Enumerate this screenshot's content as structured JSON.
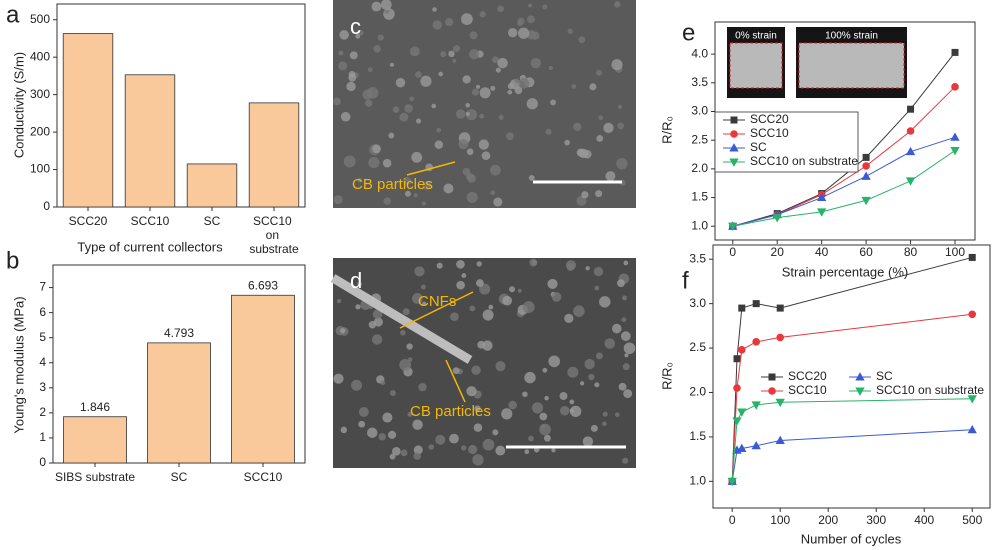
{
  "chart_data": [
    {
      "panel": "a",
      "type": "bar",
      "categories": [
        "SCC20",
        "SCC10",
        "SC",
        "SCC10 on substrate"
      ],
      "values": [
        463,
        353,
        115,
        278
      ],
      "color": "#f9c89b",
      "ylim": [
        0,
        542
      ],
      "yticks": [
        0,
        100,
        200,
        300,
        400,
        500
      ],
      "ylabel": "Conductivity (S/m)",
      "xlabel": "Type of current collectors"
    },
    {
      "panel": "b",
      "type": "bar",
      "categories": [
        "SIBS substrate",
        "SC",
        "SCC10"
      ],
      "values": [
        1.846,
        4.793,
        6.693
      ],
      "color": "#f9c89b",
      "data_labels": true,
      "ylim": [
        0,
        7.9
      ],
      "yticks": [
        0,
        1,
        2,
        3,
        4,
        5,
        6,
        7
      ],
      "ylabel": "Young's modulus (MPa)"
    },
    {
      "panel": "e",
      "type": "line",
      "x": [
        0,
        20,
        40,
        60,
        80,
        100
      ],
      "series": [
        {
          "name": "SCC20",
          "color": "#3a3a3a",
          "marker": "square",
          "values": [
            1.0,
            1.22,
            1.57,
            2.2,
            3.04,
            4.03
          ]
        },
        {
          "name": "SCC10",
          "color": "#e8383d",
          "marker": "circle",
          "values": [
            1.0,
            1.2,
            1.55,
            2.05,
            2.66,
            3.43
          ]
        },
        {
          "name": "SC",
          "color": "#3a5bd6",
          "marker": "triangle-up",
          "values": [
            1.0,
            1.2,
            1.5,
            1.87,
            2.3,
            2.55
          ]
        },
        {
          "name": "SCC10 on substrate",
          "color": "#27b36a",
          "marker": "triangle-down",
          "values": [
            1.0,
            1.15,
            1.25,
            1.45,
            1.79,
            2.32
          ]
        }
      ],
      "xlim": [
        -8,
        109
      ],
      "ylim": [
        0.76,
        4.56
      ],
      "xticks": [
        0,
        20,
        40,
        60,
        80,
        100
      ],
      "yticks": [
        {
          "value": 1,
          "label": "1.0"
        },
        1.5,
        {
          "value": 2,
          "label": "2.0"
        },
        2.5,
        {
          "value": 3,
          "label": "3.0"
        },
        3.5,
        {
          "value": 4,
          "label": "4.0"
        }
      ],
      "xlabel": "Strain percentage (%)",
      "ylabel": "R/R₀",
      "legend": "upper left",
      "insets": [
        "0% strain",
        "100% strain"
      ]
    },
    {
      "panel": "f",
      "type": "line",
      "x": [
        0,
        10,
        20,
        50,
        100,
        500
      ],
      "series": [
        {
          "name": "SCC20",
          "color": "#3a3a3a",
          "marker": "square",
          "values": [
            1.0,
            2.38,
            2.95,
            3.0,
            2.95,
            3.52
          ]
        },
        {
          "name": "SCC10",
          "color": "#e8383d",
          "marker": "circle",
          "values": [
            1.0,
            2.05,
            2.48,
            2.57,
            2.62,
            2.88
          ]
        },
        {
          "name": "SC",
          "color": "#3a5bd6",
          "marker": "triangle-up",
          "values": [
            1.0,
            1.35,
            1.37,
            1.4,
            1.46,
            1.58
          ]
        },
        {
          "name": "SCC10 on substrate",
          "color": "#27b36a",
          "marker": "triangle-down",
          "values": [
            1.0,
            1.68,
            1.78,
            1.86,
            1.89,
            1.93
          ]
        }
      ],
      "xlim": [
        -40,
        537
      ],
      "ylim": [
        0.7,
        3.66
      ],
      "xticks": [
        0,
        100,
        200,
        300,
        400,
        500
      ],
      "yticks": [
        {
          "value": 1,
          "label": "1.0"
        },
        1.5,
        {
          "value": 2,
          "label": "2.0"
        },
        2.5,
        {
          "value": 3,
          "label": "3.0"
        },
        3.5
      ],
      "xlabel": "Number of cycles",
      "ylabel": "R/R₀",
      "legend": "upper left",
      "legend_columns": 2
    }
  ],
  "images": [
    {
      "panel": "c",
      "annotations": [
        "CB particles"
      ]
    },
    {
      "panel": "d",
      "annotations": [
        "CNFs",
        "CB particles"
      ]
    }
  ]
}
